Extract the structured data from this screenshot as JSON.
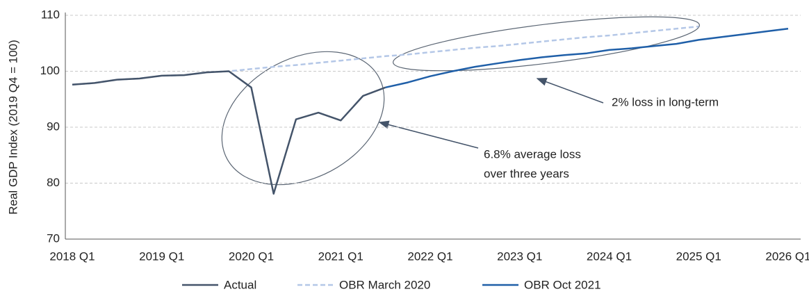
{
  "chart_data": {
    "type": "line",
    "ylabel": "Real GDP Index (2019 Q4 = 100)",
    "categories": [
      "2018 Q1",
      null,
      null,
      null,
      "2019 Q1",
      null,
      null,
      null,
      "2020 Q1",
      null,
      null,
      null,
      "2021 Q1",
      null,
      null,
      null,
      "2022 Q1",
      null,
      null,
      null,
      "2023 Q1",
      null,
      null,
      null,
      "2024 Q1",
      null,
      null,
      null,
      "2025 Q1",
      null,
      null,
      null,
      "2026 Q1"
    ],
    "series": [
      {
        "name": "Actual",
        "color": "#44546a",
        "dash": false,
        "values": [
          97.6,
          97.9,
          98.5,
          98.7,
          99.2,
          99.3,
          99.8,
          100,
          97.1,
          78.1,
          91.4,
          92.6,
          91.2,
          95.6,
          97.1,
          null,
          null,
          null,
          null,
          null,
          null,
          null,
          null,
          null,
          null,
          null,
          null,
          null,
          null,
          null,
          null,
          null,
          null
        ]
      },
      {
        "name": "OBR March 2020",
        "color": "#b4c7e7",
        "dash": true,
        "values": [
          97.6,
          97.9,
          98.5,
          98.7,
          99.2,
          99.3,
          99.8,
          100,
          100.4,
          100.8,
          101.1,
          101.5,
          101.9,
          102.3,
          102.7,
          103.0,
          103.4,
          103.8,
          104.2,
          104.5,
          104.9,
          105.3,
          105.7,
          106.1,
          106.4,
          106.8,
          107.2,
          107.6,
          108.0,
          null,
          null,
          null,
          null
        ]
      },
      {
        "name": "OBR Oct 2021",
        "color": "#1f5fa8",
        "dash": false,
        "values": [
          null,
          null,
          null,
          null,
          null,
          null,
          null,
          null,
          null,
          null,
          null,
          null,
          null,
          null,
          97.1,
          98.0,
          99.1,
          100.0,
          100.8,
          101.4,
          102.0,
          102.5,
          102.9,
          103.2,
          103.8,
          104.1,
          104.5,
          104.9,
          105.6,
          106.1,
          106.6,
          107.1,
          107.6
        ]
      }
    ],
    "ylim": [
      70,
      110
    ],
    "yticks": [
      70,
      80,
      90,
      100,
      110
    ],
    "grid": true,
    "legend": "bottom",
    "annotations": [
      {
        "lines": [
          "2% loss in long-term"
        ]
      },
      {
        "lines": [
          "6.8% average loss",
          "over three years"
        ]
      }
    ]
  }
}
